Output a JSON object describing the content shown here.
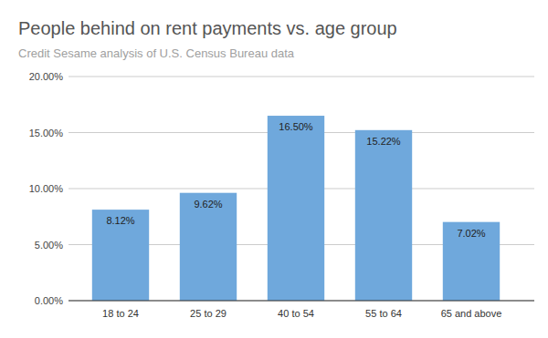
{
  "chart_data": {
    "type": "bar",
    "title": "People behind on rent payments vs. age group",
    "subtitle": "Credit Sesame analysis of U.S. Census Bureau data",
    "categories": [
      "18 to 24",
      "25 to 29",
      "40 to 54",
      "55 to 64",
      "65 and above"
    ],
    "values": [
      8.12,
      9.62,
      16.5,
      15.22,
      7.02
    ],
    "value_labels": [
      "8.12%",
      "9.62%",
      "16.50%",
      "15.22%",
      "7.02%"
    ],
    "color": "#6fa8dc",
    "ylim": [
      0,
      20
    ],
    "yticks": [
      {
        "value": 0,
        "label": "0.00%"
      },
      {
        "value": 5,
        "label": "5.00%"
      },
      {
        "value": 10,
        "label": "10.00%"
      },
      {
        "value": 15,
        "label": "15.00%"
      },
      {
        "value": 20,
        "label": "20.00%"
      }
    ],
    "grid": true,
    "data_labels": true
  }
}
